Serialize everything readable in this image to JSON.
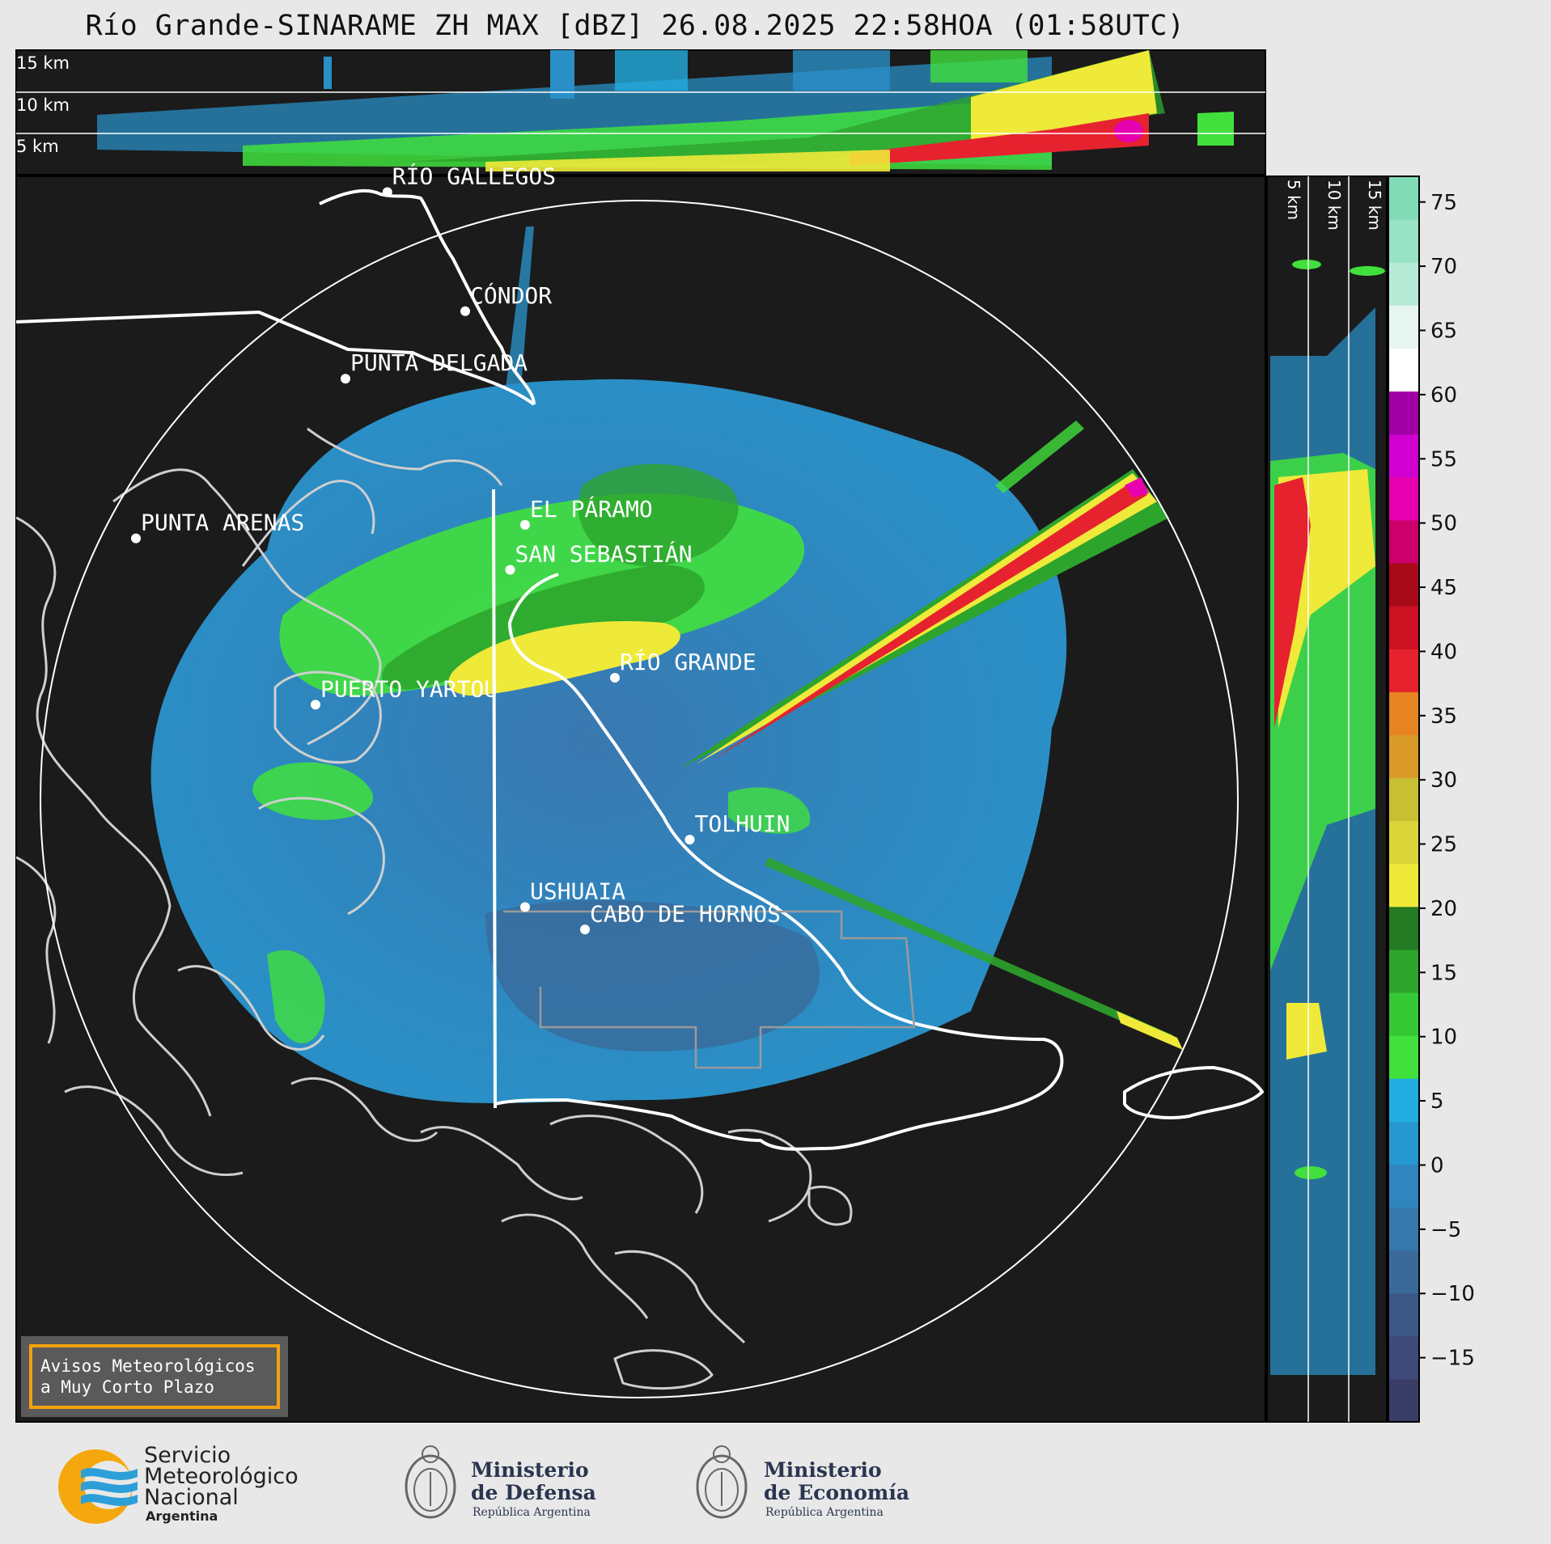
{
  "title": "Río Grande-SINARAME ZH MAX [dBZ] 26.08.2025 22:58HOA (01:58UTC)",
  "top_panel": {
    "altitude_labels": [
      "15 km",
      "10 km",
      "5 km"
    ]
  },
  "side_panel": {
    "altitude_labels": [
      "5 km",
      "10 km",
      "15 km"
    ]
  },
  "colorbar": {
    "unit": "dBZ",
    "ticks": [
      75,
      70,
      65,
      60,
      55,
      50,
      45,
      40,
      35,
      30,
      25,
      20,
      15,
      10,
      5,
      0,
      -5,
      -10,
      -15
    ],
    "tick_labels": [
      "75",
      "70",
      "65",
      "60",
      "55",
      "50",
      "45",
      "40",
      "35",
      "30",
      "25",
      "20",
      "15",
      "10",
      "5",
      "0",
      "−5",
      "−10",
      "−15"
    ],
    "range": [
      -20,
      77
    ],
    "colors": [
      "#3a3d66",
      "#3f4a7a",
      "#3d5786",
      "#3a6a9a",
      "#3778ad",
      "#2f86be",
      "#2798cf",
      "#22aee0",
      "#41e03c",
      "#35c835",
      "#2da42c",
      "#237a22",
      "#efe93a",
      "#dcd53a",
      "#c9bf33",
      "#d99a2a",
      "#e58420",
      "#e6222f",
      "#cc1222",
      "#a80a18",
      "#cc006a",
      "#e600b0",
      "#d000d0",
      "#a000a6",
      "#ffffff",
      "#e6f5ef",
      "#b8ebd7",
      "#98e2c5",
      "#80dbb6"
    ]
  },
  "places": [
    {
      "name": "RÍO GALLEGOS",
      "lon": -69.22,
      "lat": -51.62
    },
    {
      "name": "CÓNDOR",
      "lon": -68.7,
      "lat": -52.15
    },
    {
      "name": "PUNTA DELGADA",
      "lon": -69.5,
      "lat": -52.45
    },
    {
      "name": "EL PÁRAMO",
      "lon": -68.3,
      "lat": -53.1
    },
    {
      "name": "SAN SEBASTIÁN",
      "lon": -68.4,
      "lat": -53.3
    },
    {
      "name": "PUNTA ARENAS",
      "lon": -70.9,
      "lat": -53.16
    },
    {
      "name": "RÍO GRANDE",
      "lon": -67.7,
      "lat": -53.78
    },
    {
      "name": "PUERTO YARTOU",
      "lon": -69.7,
      "lat": -53.9
    },
    {
      "name": "TOLHUIN",
      "lon": -67.2,
      "lat": -54.5
    },
    {
      "name": "USHUAIA",
      "lon": -68.3,
      "lat": -54.8
    },
    {
      "name": "CABO DE HORNOS",
      "lon": -67.9,
      "lat": -54.9
    }
  ],
  "notice": {
    "line1": "Avisos Meteorológicos",
    "line2": "a Muy Corto Plazo"
  },
  "logos": {
    "smn": {
      "line1": "Servicio",
      "line2": "Meteorológico",
      "line3": "Nacional",
      "line4": "Argentina"
    },
    "defensa": {
      "line1": "Ministerio",
      "line2": "de Defensa",
      "line3": "República Argentina"
    },
    "economia": {
      "line1": "Ministerio",
      "line2": "de Economía",
      "line3": "República Argentina"
    }
  }
}
